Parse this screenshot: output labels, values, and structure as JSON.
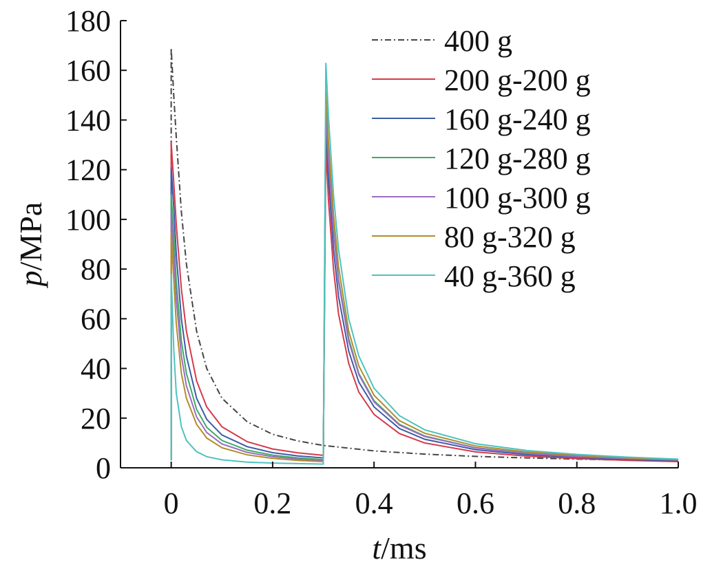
{
  "chart_data": {
    "type": "line",
    "title": "",
    "xlabel_var": "t",
    "xlabel_unit": "/ms",
    "ylabel_var": "p",
    "ylabel_unit": "/MPa",
    "xlim": [
      -0.1,
      1.0
    ],
    "ylim": [
      0,
      180
    ],
    "xticks": [
      0,
      0.2,
      0.4,
      0.6,
      0.8,
      1.0
    ],
    "xtick_labels": [
      "0",
      "0.2",
      "0.4",
      "0.6",
      "0.8",
      "1.0"
    ],
    "yticks": [
      0,
      20,
      40,
      60,
      80,
      100,
      120,
      140,
      160,
      180
    ],
    "ytick_labels": [
      "0",
      "20",
      "40",
      "60",
      "80",
      "100",
      "120",
      "140",
      "160",
      "180"
    ],
    "grid": false,
    "legend_position": "top-right",
    "series": [
      {
        "name": "400 g",
        "color": "#444444",
        "dash": "dashdot",
        "x": [
          0,
          0,
          0.005,
          0.01,
          0.02,
          0.03,
          0.05,
          0.07,
          0.1,
          0.15,
          0.2,
          0.25,
          0.3,
          0.4,
          0.5,
          0.6,
          0.7,
          0.8,
          0.9,
          1.0
        ],
        "y": [
          3,
          169,
          150,
          133,
          103,
          82,
          55,
          40,
          28,
          18.5,
          13.5,
          10.8,
          9,
          6.8,
          5.5,
          4.6,
          4.0,
          3.5,
          3.1,
          2.8
        ]
      },
      {
        "name": "200 g-200 g",
        "color": "#d6394a",
        "dash": "solid",
        "x": [
          0,
          0,
          0.005,
          0.01,
          0.02,
          0.03,
          0.05,
          0.07,
          0.1,
          0.15,
          0.2,
          0.25,
          0.3,
          0.3,
          0.305,
          0.31,
          0.32,
          0.33,
          0.35,
          0.37,
          0.4,
          0.45,
          0.5,
          0.6,
          0.7,
          0.8,
          0.9,
          1.0
        ],
        "y": [
          3,
          131,
          115,
          98,
          72,
          55,
          35,
          24.5,
          16.5,
          10.5,
          7.6,
          6,
          5,
          5,
          130,
          108,
          80,
          62,
          42,
          30.5,
          21.5,
          13.8,
          10,
          6.4,
          4.7,
          3.7,
          3.0,
          2.5
        ]
      },
      {
        "name": "160 g-240 g",
        "color": "#3b5ba5",
        "dash": "solid",
        "x": [
          0,
          0,
          0.005,
          0.01,
          0.02,
          0.03,
          0.05,
          0.07,
          0.1,
          0.15,
          0.2,
          0.25,
          0.3,
          0.3,
          0.305,
          0.31,
          0.32,
          0.33,
          0.35,
          0.37,
          0.4,
          0.45,
          0.5,
          0.6,
          0.7,
          0.8,
          0.9,
          1.0
        ],
        "y": [
          3,
          121,
          105,
          86,
          60,
          45,
          28,
          19.5,
          13.2,
          8.5,
          6.1,
          4.8,
          4,
          4,
          138,
          117,
          88,
          69,
          47,
          34.5,
          24.5,
          15.8,
          11.5,
          7.3,
          5.3,
          4.2,
          3.4,
          2.8
        ]
      },
      {
        "name": "120 g-280 g",
        "color": "#3daa66",
        "dash": "solid",
        "x": [
          0,
          0,
          0.005,
          0.01,
          0.02,
          0.03,
          0.05,
          0.07,
          0.1,
          0.15,
          0.2,
          0.25,
          0.3,
          0.3,
          0.305,
          0.31,
          0.32,
          0.33,
          0.35,
          0.37,
          0.4,
          0.45,
          0.5,
          0.6,
          0.7,
          0.8,
          0.9,
          1.0
        ],
        "y": [
          3,
          110,
          94,
          75,
          51,
          38,
          23.5,
          16.3,
          11,
          7.1,
          5.1,
          4,
          3.3,
          3.3,
          147,
          126,
          96,
          76,
          52,
          38,
          27,
          17.5,
          12.8,
          8.1,
          5.9,
          4.6,
          3.7,
          3.1
        ]
      },
      {
        "name": "100 g-300 g",
        "color": "#9b6cc0",
        "dash": "solid",
        "x": [
          0,
          0,
          0.005,
          0.01,
          0.02,
          0.03,
          0.05,
          0.07,
          0.1,
          0.15,
          0.2,
          0.25,
          0.3,
          0.3,
          0.305,
          0.31,
          0.32,
          0.33,
          0.35,
          0.37,
          0.4,
          0.45,
          0.5,
          0.6,
          0.7,
          0.8,
          0.9,
          1.0
        ],
        "y": [
          3,
          103,
          86,
          68,
          45,
          33,
          20.5,
          14.2,
          9.6,
          6.2,
          4.5,
          3.5,
          2.9,
          2.9,
          145,
          124,
          95,
          75,
          51,
          37.5,
          26.5,
          17.2,
          12.6,
          8.0,
          5.8,
          4.5,
          3.7,
          3.1
        ]
      },
      {
        "name": "80 g-320 g",
        "color": "#b08d2a",
        "dash": "solid",
        "x": [
          0,
          0,
          0.005,
          0.01,
          0.02,
          0.03,
          0.05,
          0.07,
          0.1,
          0.15,
          0.2,
          0.25,
          0.3,
          0.3,
          0.305,
          0.31,
          0.32,
          0.33,
          0.35,
          0.37,
          0.4,
          0.45,
          0.5,
          0.6,
          0.7,
          0.8,
          0.9,
          1.0
        ],
        "y": [
          3,
          95,
          76,
          58,
          38,
          28,
          17.5,
          12,
          8.1,
          5.2,
          3.8,
          3,
          2.5,
          2.5,
          152,
          132,
          102,
          81,
          55,
          41,
          29.2,
          19,
          13.9,
          8.8,
          6.4,
          5.0,
          4.0,
          3.3
        ]
      },
      {
        "name": "40 g-360 g",
        "color": "#4fc2c0",
        "dash": "solid",
        "x": [
          0,
          0,
          0.005,
          0.01,
          0.02,
          0.03,
          0.05,
          0.07,
          0.1,
          0.15,
          0.2,
          0.25,
          0.3,
          0.3,
          0.305,
          0.31,
          0.32,
          0.33,
          0.35,
          0.37,
          0.4,
          0.45,
          0.5,
          0.6,
          0.7,
          0.8,
          0.9,
          1.0
        ],
        "y": [
          3,
          78,
          48,
          30,
          16.5,
          11,
          6.5,
          4.5,
          3.2,
          2.3,
          1.9,
          1.7,
          1.5,
          1.5,
          163,
          142,
          110,
          88,
          60,
          45,
          32,
          21,
          15.3,
          9.7,
          7.0,
          5.4,
          4.3,
          3.5
        ]
      }
    ]
  }
}
